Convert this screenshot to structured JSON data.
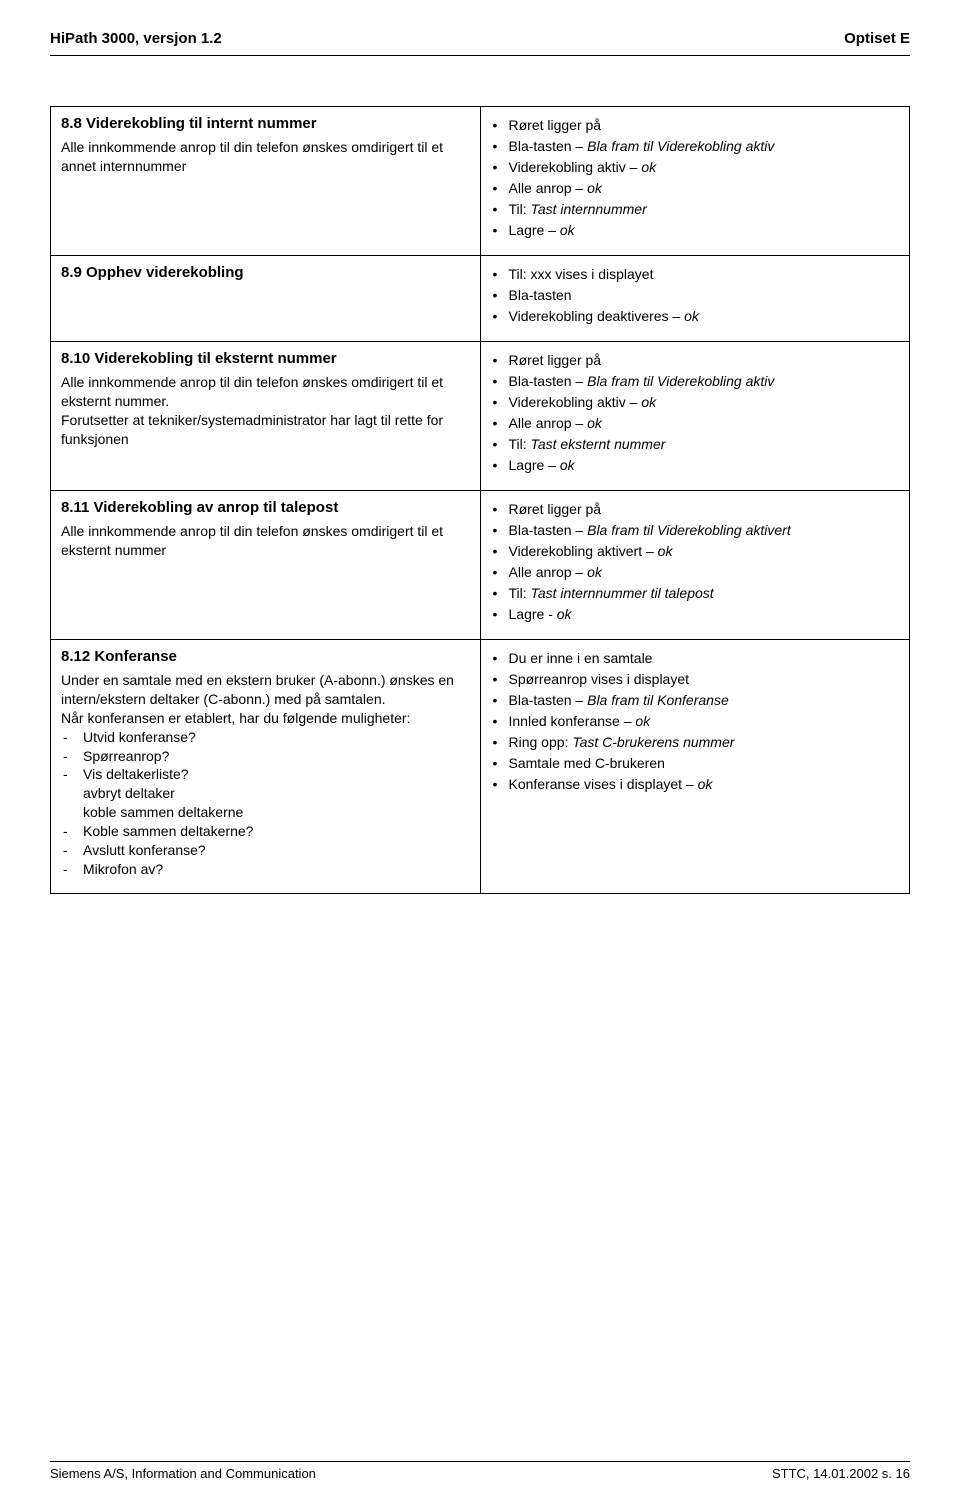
{
  "header": {
    "left": "HiPath 3000, versjon 1.2",
    "right": "Optiset E"
  },
  "sections": [
    {
      "heading": "8.8 Viderekobling til internt nummer",
      "body_lines": [
        "Alle innkommende anrop til din telefon ønskes omdirigert til et annet internnummer"
      ],
      "bullets": [
        [
          {
            "t": "Røret ligger på"
          }
        ],
        [
          {
            "t": "Bla-tasten – "
          },
          {
            "t": "Bla fram til Viderekobling aktiv",
            "i": true
          }
        ],
        [
          {
            "t": "Viderekobling aktiv – "
          },
          {
            "t": "ok",
            "i": true
          }
        ],
        [
          {
            "t": "Alle anrop – "
          },
          {
            "t": "ok",
            "i": true
          }
        ],
        [
          {
            "t": "Til: "
          },
          {
            "t": "Tast internnummer",
            "i": true
          }
        ],
        [
          {
            "t": "Lagre – "
          },
          {
            "t": "ok",
            "i": true
          }
        ]
      ]
    },
    {
      "heading": "8.9 Opphev viderekobling",
      "body_lines": [],
      "bullets": [
        [
          {
            "t": "Til: xxx vises i displayet"
          }
        ],
        [
          {
            "t": "Bla-tasten"
          }
        ],
        [
          {
            "t": "Viderekobling deaktiveres – "
          },
          {
            "t": "ok",
            "i": true
          }
        ]
      ]
    },
    {
      "heading": "8.10 Viderekobling til eksternt nummer",
      "body_lines": [
        "Alle innkommende anrop til din telefon ønskes omdirigert til et eksternt nummer.",
        "Forutsetter at tekniker/systemadministrator har lagt til rette for funksjonen"
      ],
      "bullets": [
        [
          {
            "t": "Røret ligger på"
          }
        ],
        [
          {
            "t": "Bla-tasten – "
          },
          {
            "t": "Bla fram til Viderekobling aktiv",
            "i": true
          }
        ],
        [
          {
            "t": "Viderekobling aktiv – "
          },
          {
            "t": "ok",
            "i": true
          }
        ],
        [
          {
            "t": "Alle anrop – "
          },
          {
            "t": "ok",
            "i": true
          }
        ],
        [
          {
            "t": "Til: "
          },
          {
            "t": "Tast eksternt nummer",
            "i": true
          }
        ],
        [
          {
            "t": "Lagre – "
          },
          {
            "t": "ok",
            "i": true
          }
        ]
      ]
    },
    {
      "heading": "8.11 Viderekobling av anrop til talepost",
      "body_lines": [
        "Alle innkommende anrop til din telefon ønskes omdirigert til et eksternt nummer"
      ],
      "bullets": [
        [
          {
            "t": "Røret ligger på"
          }
        ],
        [
          {
            "t": "Bla-tasten – "
          },
          {
            "t": "Bla fram til Viderekobling aktivert",
            "i": true
          }
        ],
        [
          {
            "t": "Viderekobling aktivert – "
          },
          {
            "t": "ok",
            "i": true
          }
        ],
        [
          {
            "t": "Alle anrop – "
          },
          {
            "t": "ok",
            "i": true
          }
        ],
        [
          {
            "t": "Til: "
          },
          {
            "t": "Tast internnummer til talepost",
            "i": true
          }
        ],
        [
          {
            "t": "Lagre - "
          },
          {
            "t": "ok",
            "i": true
          }
        ]
      ]
    },
    {
      "heading": "8.12 Konferanse",
      "body_paragraphs": [
        "Under en samtale med en ekstern bruker (A-abonn.) ønskes en intern/ekstern deltaker (C-abonn.) med på samtalen.",
        "Når konferansen er etablert, har du følgende muligheter:"
      ],
      "dash_items": [
        {
          "text": "Utvid konferanse?"
        },
        {
          "text": "Spørreanrop?"
        },
        {
          "text": "Vis deltakerliste?",
          "sub": [
            "avbryt deltaker",
            "koble sammen deltakerne"
          ]
        },
        {
          "text": "Koble sammen deltakerne?"
        },
        {
          "text": "Avslutt konferanse?"
        },
        {
          "text": "Mikrofon av?"
        }
      ],
      "bullets": [
        [
          {
            "t": "Du er inne i en samtale"
          }
        ],
        [
          {
            "t": "Spørreanrop vises i displayet"
          }
        ],
        [
          {
            "t": "Bla-tasten – "
          },
          {
            "t": "Bla fram til Konferanse",
            "i": true
          }
        ],
        [
          {
            "t": "Innled konferanse – "
          },
          {
            "t": "ok",
            "i": true
          }
        ],
        [
          {
            "t": "Ring opp: "
          },
          {
            "t": "Tast C-brukerens nummer",
            "i": true
          }
        ],
        [
          {
            "t": "Samtale med C-brukeren"
          }
        ],
        [
          {
            "t": "Konferanse vises i displayet – "
          },
          {
            "t": "ok",
            "i": true
          }
        ]
      ]
    }
  ],
  "footer": {
    "left": "Siemens A/S, Information and Communication",
    "right": "STTC, 14.01.2002 s. 16"
  }
}
